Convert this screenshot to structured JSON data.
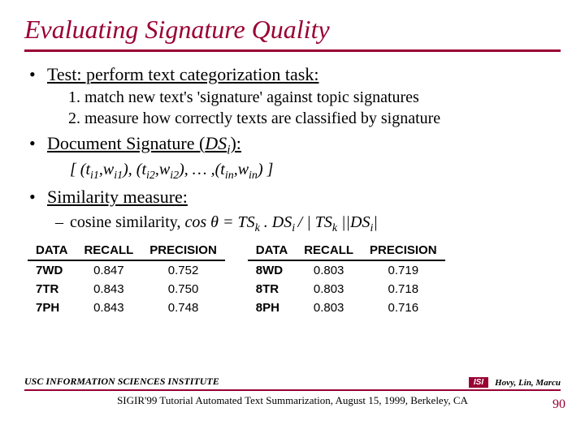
{
  "title": "Evaluating Signature Quality",
  "bullets": {
    "b1": {
      "label": "Test: perform text categorization task:",
      "subs": {
        "s1": "1. match new text's 'signature' against topic signatures",
        "s2": "2. measure how correctly texts are classified by signature"
      }
    },
    "b2": {
      "label_pre": "Document Signature (",
      "label_ds": "DS",
      "label_sub": "i",
      "label_post": "):",
      "formula": "[ (t",
      "f_parts": {
        "p1": "i1",
        "p2": ",w",
        "p3": "i1",
        "p4": "), (t",
        "p5": "i2",
        "p6": ",w",
        "p7": "i2",
        "p8": "), … ,(t",
        "p9": "in",
        "p10": ",w",
        "p11": "in",
        "p12": ") ]"
      }
    },
    "b3": {
      "label": "Similarity measure:",
      "dash_pre": "cosine similarity, ",
      "cos": "cos θ = TS",
      "k1": "k",
      "dot": " . DS",
      "i1": "i ",
      "mid": " / | TS",
      "k2": "k",
      "bars": " ||DS",
      "i2": "i",
      "end": "|"
    }
  },
  "tables": {
    "headers": {
      "c1": "DATA",
      "c2": "RECALL",
      "c3": "PRECISION"
    },
    "left": {
      "r1": {
        "d": "7WD",
        "r": "0.847",
        "p": "0.752"
      },
      "r2": {
        "d": "7TR",
        "r": "0.843",
        "p": "0.750"
      },
      "r3": {
        "d": "7PH",
        "r": "0.843",
        "p": "0.748"
      }
    },
    "right": {
      "r1": {
        "d": "8WD",
        "r": "0.803",
        "p": "0.719"
      },
      "r2": {
        "d": "8TR",
        "r": "0.803",
        "p": "0.718"
      },
      "r3": {
        "d": "8PH",
        "r": "0.803",
        "p": "0.716"
      }
    }
  },
  "footer": {
    "inst": "USC INFORMATION SCIENCES INSTITUTE",
    "badge": "ISI",
    "authors": "Hovy, Lin, Marcu",
    "line2": "SIGIR'99 Tutorial Automated Text Summarization, August 15, 1999, Berkeley, CA",
    "pagenum": "90"
  },
  "colors": {
    "accent": "#990033",
    "text": "#000000",
    "bg": "#ffffff"
  }
}
